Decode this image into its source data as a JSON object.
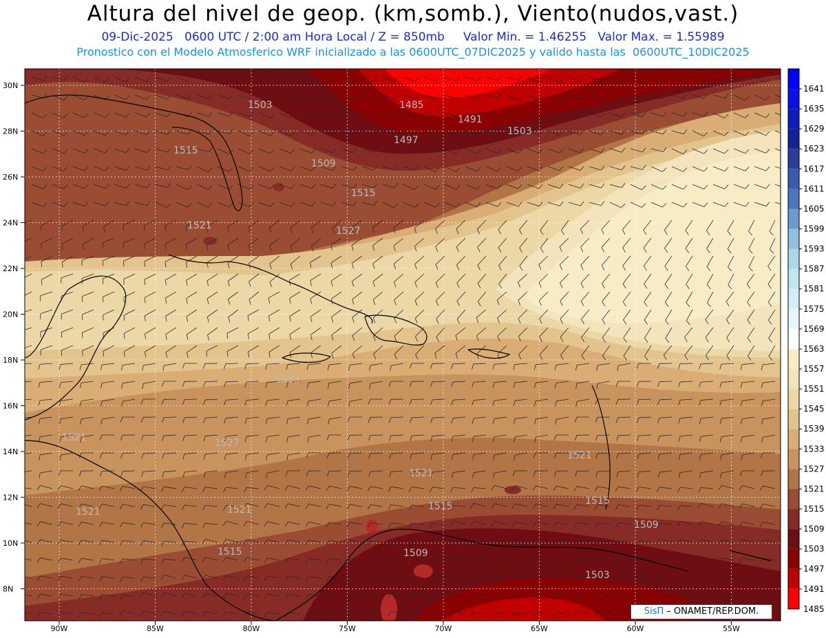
{
  "title": "Altura del nivel de geop. (km,somb.), Viento(nudos,vast.)",
  "subtitle_line1": "09-Dic-2025   0600 UTC / 2:00 am Hora Local / Z = 850mb     Valor Min. = 1.46255   Valor Max. = 1.55989",
  "subtitle_line2": "Pronostico con el Modelo Atmosferico WRF inicializado a las 0600UTC_07DIC2025 y valido hasta las  0600UTC_10DIC2025",
  "credit": {
    "brand": "SisΠ",
    "org": " – ONAMET/REP.DOM."
  },
  "lat_ticks": [
    "30N",
    "28N",
    "26N",
    "24N",
    "22N",
    "20N",
    "18N",
    "16N",
    "14N",
    "12N",
    "10N",
    "8N"
  ],
  "lon_ticks": [
    "90W",
    "85W",
    "80W",
    "75W",
    "70W",
    "65W",
    "60W",
    "55W"
  ],
  "colorbar": [
    {
      "v": "1641",
      "c": "#0000ff"
    },
    {
      "v": "1635",
      "c": "#0a10e6"
    },
    {
      "v": "1629",
      "c": "#0d1cc0"
    },
    {
      "v": "1623",
      "c": "#14229a"
    },
    {
      "v": "1617",
      "c": "#2c3d9c"
    },
    {
      "v": "1611",
      "c": "#3a5cb0"
    },
    {
      "v": "1605",
      "c": "#4d76c0"
    },
    {
      "v": "1599",
      "c": "#6b9ad0"
    },
    {
      "v": "1593",
      "c": "#8fc0e0"
    },
    {
      "v": "1587",
      "c": "#aad8ea"
    },
    {
      "v": "1581",
      "c": "#c0e6f0"
    },
    {
      "v": "1575",
      "c": "#d2eef6"
    },
    {
      "v": "1569",
      "c": "#e4f6fa"
    },
    {
      "v": "1563",
      "c": "#ffffff"
    },
    {
      "v": "1557",
      "c": "#f7ecc6"
    },
    {
      "v": "1551",
      "c": "#f3e4bc"
    },
    {
      "v": "1545",
      "c": "#ecd7a7"
    },
    {
      "v": "1539",
      "c": "#e3c48c"
    },
    {
      "v": "1533",
      "c": "#d9ad74"
    },
    {
      "v": "1527",
      "c": "#c8935c"
    },
    {
      "v": "1521",
      "c": "#b27545"
    },
    {
      "v": "1515",
      "c": "#9a4d32"
    },
    {
      "v": "1509",
      "c": "#862b26"
    },
    {
      "v": "1503",
      "c": "#6e0d12"
    },
    {
      "v": "1497",
      "c": "#8a0000"
    },
    {
      "v": "1491",
      "c": "#c00000"
    },
    {
      "v": "1485",
      "c": "#ff0000"
    }
  ],
  "contour_labels": [
    {
      "t": "1503"
    },
    {
      "t": "1485"
    },
    {
      "t": "1491"
    },
    {
      "t": "1497"
    },
    {
      "t": "1503"
    },
    {
      "t": "1515"
    },
    {
      "t": "1509"
    },
    {
      "t": "1515"
    },
    {
      "t": "1521"
    },
    {
      "t": "1527"
    },
    {
      "t": "1533"
    },
    {
      "t": "1521"
    },
    {
      "t": "1527"
    },
    {
      "t": "1521"
    },
    {
      "t": "1521"
    },
    {
      "t": "1521"
    },
    {
      "t": "1521"
    },
    {
      "t": "1515"
    },
    {
      "t": "1515"
    },
    {
      "t": "1515"
    },
    {
      "t": "1509"
    },
    {
      "t": "1509"
    },
    {
      "t": "1503"
    }
  ]
}
